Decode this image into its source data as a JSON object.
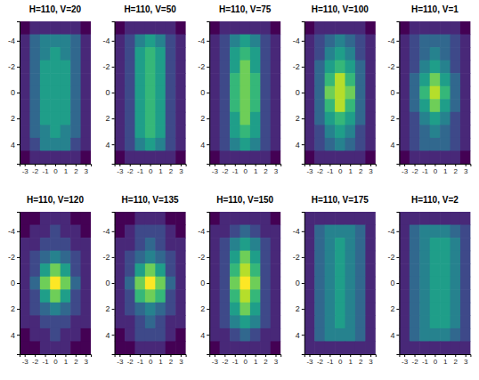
{
  "chart_data": [
    {
      "type": "heatmap",
      "title": "H=110, V=20",
      "x": [
        -3,
        -2,
        -1,
        0,
        1,
        2,
        3
      ],
      "y": [
        -5,
        -4,
        -3,
        -2,
        -1,
        0,
        1,
        2,
        3,
        4,
        5
      ],
      "xlim": [
        -3.5,
        3.5
      ],
      "ylim": [
        -5.5,
        5.5
      ],
      "xticks": [
        -3,
        -2,
        -1,
        0,
        1,
        2,
        3
      ],
      "yticks": [
        -4,
        -2,
        0,
        2,
        4
      ],
      "zlim": [
        0,
        9
      ],
      "cells": [
        [
          0,
          1,
          1,
          1,
          1,
          1,
          0
        ],
        [
          1,
          3,
          4,
          4,
          4,
          3,
          1
        ],
        [
          1,
          3,
          4,
          5,
          4,
          3,
          1
        ],
        [
          1,
          3,
          5,
          5,
          5,
          3,
          1
        ],
        [
          1,
          3,
          5,
          5,
          5,
          3,
          1
        ],
        [
          1,
          3,
          5,
          5,
          5,
          3,
          1
        ],
        [
          1,
          3,
          5,
          5,
          5,
          3,
          1
        ],
        [
          1,
          3,
          5,
          5,
          5,
          3,
          1
        ],
        [
          1,
          3,
          4,
          5,
          4,
          3,
          1
        ],
        [
          1,
          2,
          4,
          4,
          4,
          2,
          1
        ],
        [
          0,
          1,
          1,
          1,
          1,
          1,
          0
        ]
      ]
    },
    {
      "type": "heatmap",
      "title": "H=110, V=50",
      "x": [
        -3,
        -2,
        -1,
        0,
        1,
        2,
        3
      ],
      "y": [
        -5,
        -4,
        -3,
        -2,
        -1,
        0,
        1,
        2,
        3,
        4,
        5
      ],
      "xlim": [
        -3.5,
        3.5
      ],
      "ylim": [
        -5.5,
        5.5
      ],
      "xticks": [
        -3,
        -2,
        -1,
        0,
        1,
        2,
        3
      ],
      "yticks": [
        -4,
        -2,
        0,
        2,
        4
      ],
      "zlim": [
        0,
        9
      ],
      "cells": [
        [
          0,
          1,
          1,
          1,
          1,
          1,
          0
        ],
        [
          1,
          2,
          4,
          5,
          4,
          2,
          1
        ],
        [
          1,
          2,
          5,
          6,
          5,
          2,
          1
        ],
        [
          1,
          2,
          5,
          6,
          5,
          2,
          1
        ],
        [
          1,
          2,
          5,
          6,
          5,
          2,
          1
        ],
        [
          1,
          2,
          5,
          6,
          5,
          2,
          1
        ],
        [
          1,
          2,
          5,
          6,
          5,
          2,
          1
        ],
        [
          1,
          2,
          5,
          6,
          5,
          2,
          1
        ],
        [
          1,
          2,
          5,
          6,
          5,
          2,
          1
        ],
        [
          1,
          2,
          4,
          5,
          4,
          2,
          1
        ],
        [
          0,
          1,
          1,
          1,
          1,
          1,
          0
        ]
      ]
    },
    {
      "type": "heatmap",
      "title": "H=110, V=75",
      "x": [
        -3,
        -2,
        -1,
        0,
        1,
        2,
        3
      ],
      "y": [
        -5,
        -4,
        -3,
        -2,
        -1,
        0,
        1,
        2,
        3,
        4,
        5
      ],
      "xlim": [
        -3.5,
        3.5
      ],
      "ylim": [
        -5.5,
        5.5
      ],
      "xticks": [
        -3,
        -2,
        -1,
        0,
        1,
        2,
        3
      ],
      "yticks": [
        -4,
        -2,
        0,
        2,
        4
      ],
      "zlim": [
        0,
        9
      ],
      "cells": [
        [
          0,
          1,
          1,
          1,
          1,
          1,
          0
        ],
        [
          1,
          2,
          4,
          5,
          4,
          2,
          1
        ],
        [
          1,
          2,
          5,
          6,
          5,
          2,
          1
        ],
        [
          1,
          2,
          5,
          7,
          5,
          2,
          1
        ],
        [
          1,
          2,
          6,
          7,
          6,
          2,
          1
        ],
        [
          1,
          2,
          6,
          7,
          6,
          2,
          1
        ],
        [
          1,
          2,
          6,
          7,
          6,
          2,
          1
        ],
        [
          1,
          2,
          5,
          7,
          5,
          2,
          1
        ],
        [
          1,
          2,
          5,
          6,
          5,
          2,
          1
        ],
        [
          1,
          2,
          4,
          5,
          4,
          2,
          1
        ],
        [
          0,
          1,
          1,
          1,
          1,
          1,
          0
        ]
      ]
    },
    {
      "type": "heatmap",
      "title": "H=110, V=100",
      "x": [
        -3,
        -2,
        -1,
        0,
        1,
        2,
        3
      ],
      "y": [
        -5,
        -4,
        -3,
        -2,
        -1,
        0,
        1,
        2,
        3,
        4,
        5
      ],
      "xlim": [
        -3.5,
        3.5
      ],
      "ylim": [
        -5.5,
        5.5
      ],
      "xticks": [
        -3,
        -2,
        -1,
        0,
        1,
        2,
        3
      ],
      "yticks": [
        -4,
        -2,
        0,
        2,
        4
      ],
      "zlim": [
        0,
        9
      ],
      "cells": [
        [
          0,
          1,
          1,
          1,
          1,
          1,
          0
        ],
        [
          1,
          2,
          3,
          4,
          3,
          2,
          1
        ],
        [
          1,
          2,
          4,
          5,
          4,
          2,
          1
        ],
        [
          1,
          3,
          5,
          6,
          5,
          3,
          1
        ],
        [
          1,
          3,
          6,
          8,
          6,
          3,
          1
        ],
        [
          1,
          3,
          7,
          8,
          7,
          3,
          1
        ],
        [
          1,
          3,
          6,
          8,
          6,
          3,
          1
        ],
        [
          1,
          3,
          5,
          6,
          5,
          3,
          1
        ],
        [
          1,
          2,
          4,
          5,
          4,
          2,
          1
        ],
        [
          1,
          2,
          3,
          4,
          3,
          2,
          1
        ],
        [
          0,
          1,
          1,
          1,
          1,
          1,
          0
        ]
      ]
    },
    {
      "type": "heatmap",
      "title": "H=110, V=1",
      "x": [
        -3,
        -2,
        -1,
        0,
        1,
        2,
        3
      ],
      "y": [
        -5,
        -4,
        -3,
        -2,
        -1,
        0,
        1,
        2,
        3,
        4,
        5
      ],
      "xlim": [
        -3.5,
        3.5
      ],
      "ylim": [
        -5.5,
        5.5
      ],
      "xticks": [
        -3,
        -2,
        -1,
        0,
        1,
        2,
        3
      ],
      "yticks": [
        -4,
        -2,
        0,
        2,
        4
      ],
      "zlim": [
        0,
        9
      ],
      "cells": [
        [
          0,
          1,
          1,
          1,
          1,
          1,
          0
        ],
        [
          1,
          2,
          3,
          3,
          3,
          2,
          1
        ],
        [
          1,
          2,
          3,
          4,
          3,
          2,
          1
        ],
        [
          1,
          2,
          4,
          5,
          4,
          2,
          1
        ],
        [
          1,
          3,
          5,
          7,
          5,
          3,
          1
        ],
        [
          1,
          3,
          6,
          8,
          6,
          3,
          1
        ],
        [
          1,
          3,
          5,
          7,
          5,
          3,
          1
        ],
        [
          1,
          2,
          4,
          5,
          4,
          2,
          1
        ],
        [
          1,
          2,
          3,
          4,
          3,
          2,
          1
        ],
        [
          1,
          2,
          3,
          3,
          3,
          2,
          1
        ],
        [
          0,
          1,
          1,
          1,
          1,
          1,
          0
        ]
      ]
    },
    {
      "type": "heatmap",
      "title": "H=110, V=120",
      "x": [
        -3,
        -2,
        -1,
        0,
        1,
        2,
        3
      ],
      "y": [
        -5,
        -4,
        -3,
        -2,
        -1,
        0,
        1,
        2,
        3,
        4,
        5
      ],
      "xlim": [
        -3.5,
        3.5
      ],
      "ylim": [
        -5.5,
        5.5
      ],
      "xticks": [
        -3,
        -2,
        -1,
        0,
        1,
        2,
        3
      ],
      "yticks": [
        -4,
        -2,
        0,
        2,
        4
      ],
      "zlim": [
        0,
        9
      ],
      "cells": [
        [
          0,
          0,
          1,
          1,
          1,
          0,
          0
        ],
        [
          0,
          1,
          1,
          2,
          1,
          1,
          0
        ],
        [
          1,
          1,
          2,
          2,
          2,
          1,
          1
        ],
        [
          1,
          2,
          3,
          4,
          3,
          2,
          1
        ],
        [
          1,
          2,
          5,
          7,
          5,
          2,
          1
        ],
        [
          1,
          3,
          7,
          9,
          7,
          3,
          1
        ],
        [
          1,
          2,
          5,
          7,
          5,
          2,
          1
        ],
        [
          1,
          2,
          3,
          4,
          3,
          2,
          1
        ],
        [
          1,
          1,
          2,
          2,
          2,
          1,
          1
        ],
        [
          0,
          1,
          1,
          2,
          1,
          1,
          0
        ],
        [
          0,
          0,
          1,
          1,
          1,
          0,
          0
        ]
      ]
    },
    {
      "type": "heatmap",
      "title": "H=110, V=135",
      "x": [
        -3,
        -2,
        -1,
        0,
        1,
        2,
        3
      ],
      "y": [
        -5,
        -4,
        -3,
        -2,
        -1,
        0,
        1,
        2,
        3,
        4,
        5
      ],
      "xlim": [
        -3.5,
        3.5
      ],
      "ylim": [
        -5.5,
        5.5
      ],
      "xticks": [
        -3,
        -2,
        -1,
        0,
        1,
        2,
        3
      ],
      "yticks": [
        -4,
        -2,
        0,
        2,
        4
      ],
      "zlim": [
        0,
        9
      ],
      "cells": [
        [
          0,
          0,
          1,
          1,
          1,
          0,
          0
        ],
        [
          0,
          1,
          2,
          2,
          2,
          1,
          0
        ],
        [
          1,
          1,
          2,
          3,
          2,
          1,
          1
        ],
        [
          1,
          2,
          3,
          4,
          3,
          2,
          1
        ],
        [
          1,
          2,
          5,
          7,
          5,
          2,
          1
        ],
        [
          1,
          3,
          7,
          9,
          7,
          3,
          1
        ],
        [
          1,
          2,
          6,
          7,
          6,
          2,
          1
        ],
        [
          1,
          2,
          3,
          4,
          3,
          2,
          1
        ],
        [
          1,
          1,
          2,
          3,
          2,
          1,
          1
        ],
        [
          0,
          1,
          2,
          2,
          2,
          1,
          0
        ],
        [
          0,
          0,
          1,
          1,
          1,
          0,
          0
        ]
      ]
    },
    {
      "type": "heatmap",
      "title": "H=110, V=150",
      "x": [
        -3,
        -2,
        -1,
        0,
        1,
        2,
        3
      ],
      "y": [
        -5,
        -4,
        -3,
        -2,
        -1,
        0,
        1,
        2,
        3,
        4,
        5
      ],
      "xlim": [
        -3.5,
        3.5
      ],
      "ylim": [
        -5.5,
        5.5
      ],
      "xticks": [
        -3,
        -2,
        -1,
        0,
        1,
        2,
        3
      ],
      "yticks": [
        -4,
        -2,
        0,
        2,
        4
      ],
      "zlim": [
        0,
        9
      ],
      "cells": [
        [
          0,
          1,
          1,
          1,
          1,
          1,
          0
        ],
        [
          1,
          1,
          2,
          3,
          2,
          1,
          1
        ],
        [
          1,
          2,
          4,
          5,
          4,
          2,
          1
        ],
        [
          1,
          2,
          5,
          7,
          5,
          2,
          1
        ],
        [
          1,
          2,
          6,
          8,
          6,
          2,
          1
        ],
        [
          1,
          2,
          7,
          9,
          7,
          2,
          1
        ],
        [
          1,
          2,
          6,
          8,
          6,
          2,
          1
        ],
        [
          1,
          2,
          5,
          7,
          5,
          2,
          1
        ],
        [
          1,
          2,
          4,
          5,
          4,
          2,
          1
        ],
        [
          1,
          1,
          2,
          3,
          2,
          1,
          1
        ],
        [
          0,
          1,
          1,
          1,
          1,
          1,
          0
        ]
      ]
    },
    {
      "type": "heatmap",
      "title": "H=110, V=175",
      "x": [
        -3,
        -2,
        -1,
        0,
        1,
        2,
        3
      ],
      "y": [
        -5,
        -4,
        -3,
        -2,
        -1,
        0,
        1,
        2,
        3,
        4,
        5
      ],
      "xlim": [
        -3.5,
        3.5
      ],
      "ylim": [
        -5.5,
        5.5
      ],
      "xticks": [
        -3,
        -2,
        -1,
        0,
        1,
        2,
        3
      ],
      "yticks": [
        -4,
        -2,
        0,
        2,
        4
      ],
      "zlim": [
        0,
        9
      ],
      "cells": [
        [
          1,
          1,
          1,
          1,
          1,
          1,
          1
        ],
        [
          1,
          3,
          4,
          4,
          4,
          3,
          1
        ],
        [
          1,
          3,
          4,
          5,
          4,
          3,
          1
        ],
        [
          1,
          3,
          4,
          5,
          4,
          3,
          1
        ],
        [
          1,
          3,
          4,
          5,
          4,
          3,
          1
        ],
        [
          1,
          3,
          4,
          5,
          4,
          3,
          1
        ],
        [
          1,
          3,
          4,
          5,
          4,
          3,
          1
        ],
        [
          1,
          3,
          4,
          5,
          4,
          3,
          1
        ],
        [
          1,
          3,
          4,
          5,
          4,
          3,
          1
        ],
        [
          1,
          3,
          4,
          4,
          4,
          3,
          1
        ],
        [
          1,
          1,
          1,
          1,
          1,
          1,
          1
        ]
      ]
    },
    {
      "type": "heatmap",
      "title": "H=110, V=2",
      "x": [
        -3,
        -2,
        -1,
        0,
        1,
        2,
        3
      ],
      "y": [
        -5,
        -4,
        -3,
        -2,
        -1,
        0,
        1,
        2,
        3,
        4,
        5
      ],
      "xlim": [
        -3.5,
        3.5
      ],
      "ylim": [
        -5.5,
        5.5
      ],
      "xticks": [
        -3,
        -2,
        -1,
        0,
        1,
        2,
        3
      ],
      "yticks": [
        -4,
        -2,
        0,
        2,
        4
      ],
      "zlim": [
        0,
        9
      ],
      "cells": [
        [
          1,
          1,
          1,
          1,
          1,
          1,
          1
        ],
        [
          1,
          3,
          4,
          4,
          4,
          3,
          2
        ],
        [
          1,
          3,
          4,
          5,
          5,
          4,
          2
        ],
        [
          1,
          3,
          4,
          5,
          5,
          4,
          2
        ],
        [
          1,
          3,
          4,
          5,
          5,
          4,
          2
        ],
        [
          1,
          3,
          4,
          5,
          5,
          4,
          2
        ],
        [
          1,
          3,
          4,
          5,
          5,
          4,
          2
        ],
        [
          1,
          3,
          4,
          5,
          5,
          4,
          2
        ],
        [
          1,
          3,
          4,
          5,
          5,
          4,
          2
        ],
        [
          1,
          3,
          4,
          4,
          4,
          3,
          2
        ],
        [
          1,
          1,
          1,
          1,
          1,
          1,
          1
        ]
      ]
    }
  ]
}
